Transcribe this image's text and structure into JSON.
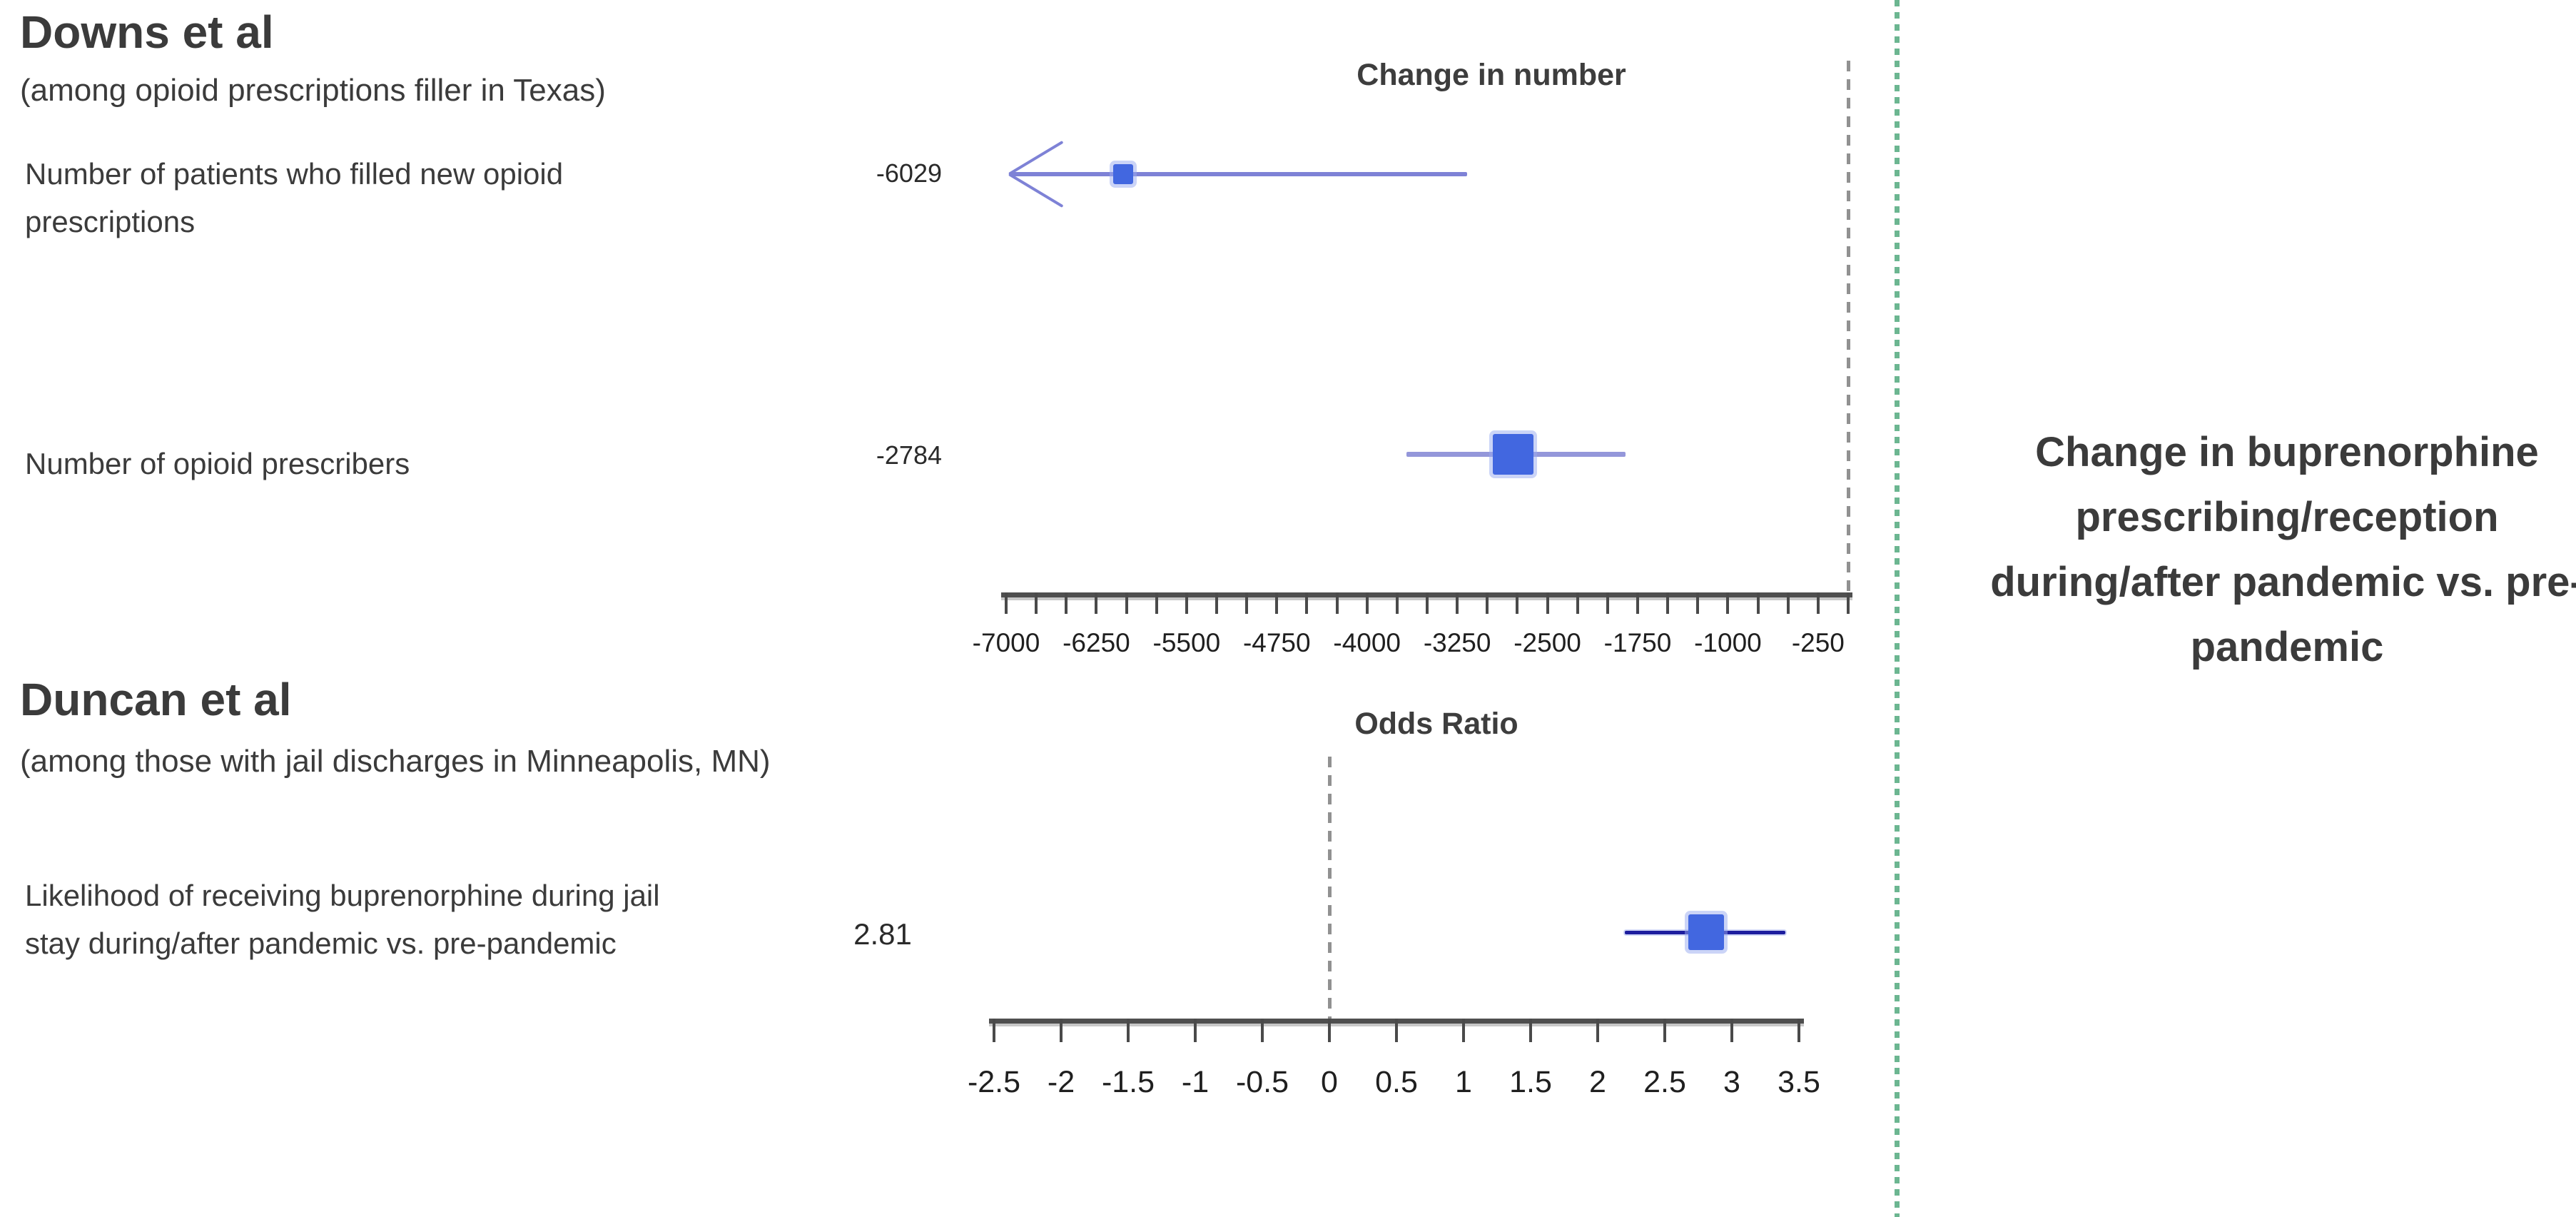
{
  "colors": {
    "text_dark": "#3d3d3d",
    "tick_text": "#1f1f1f",
    "axis_line": "#4f4f4f",
    "reference_dash": "#919191",
    "divider_green": "#6cb691",
    "marker_blue": "#4267e0",
    "marker_glow": "#97a9ef",
    "ci_slate": "#7e82d6",
    "ci_slate_light": "#9497da",
    "ci_navy": "#1d1d9e"
  },
  "annotation": {
    "text": "Change in buprenorphine prescribing/reception during/after pandemic vs. pre-pandemic"
  },
  "chart_data": [
    {
      "type": "forest",
      "section_title": "Downs et al",
      "section_note": "(among opioid prescriptions filler in Texas)",
      "axis_title": "Change in number",
      "axis": {
        "min": -7000,
        "max": 0,
        "minor_tick_step": 250,
        "reference_line_value": 0,
        "tick_labels": [
          {
            "value": -7000,
            "label": "-7000"
          },
          {
            "value": -6250,
            "label": "-6250"
          },
          {
            "value": -5500,
            "label": "-5500"
          },
          {
            "value": -4750,
            "label": "-4750"
          },
          {
            "value": -4000,
            "label": "-4000"
          },
          {
            "value": -3250,
            "label": "-3250"
          },
          {
            "value": -2500,
            "label": "-2500"
          },
          {
            "value": -1750,
            "label": "-1750"
          },
          {
            "value": -1000,
            "label": "-1000"
          },
          {
            "value": -250,
            "label": "-250"
          }
        ]
      },
      "rows": [
        {
          "label": "Number of patients who filled new opioid prescriptions",
          "estimate": -6029,
          "estimate_label": "-6029",
          "ci_low": -7000,
          "ci_low_arrow": true,
          "ci_high": -3170,
          "marker_size": 28,
          "line_color": "#7e82d6"
        },
        {
          "label": "Number of opioid prescribers",
          "estimate": -2784,
          "estimate_label": "-2784",
          "ci_low": -3670,
          "ci_low_arrow": false,
          "ci_high": -1850,
          "marker_size": 57,
          "line_color": "#9497da"
        }
      ]
    },
    {
      "type": "forest",
      "section_title": "Duncan et al",
      "section_note": "(among those with jail discharges in Minneapolis, MN)",
      "axis_title": "Odds Ratio",
      "axis": {
        "min": -2.5,
        "max": 3.5,
        "minor_tick_step": 0.5,
        "reference_line_value": 0,
        "tick_labels": [
          {
            "value": -2.5,
            "label": "-2.5"
          },
          {
            "value": -2,
            "label": "-2"
          },
          {
            "value": -1.5,
            "label": "-1.5"
          },
          {
            "value": -1,
            "label": "-1"
          },
          {
            "value": -0.5,
            "label": "-0.5"
          },
          {
            "value": 0,
            "label": "0"
          },
          {
            "value": 0.5,
            "label": "0.5"
          },
          {
            "value": 1,
            "label": "1"
          },
          {
            "value": 1.5,
            "label": "1.5"
          },
          {
            "value": 2,
            "label": "2"
          },
          {
            "value": 2.5,
            "label": "2.5"
          },
          {
            "value": 3,
            "label": "3"
          },
          {
            "value": 3.5,
            "label": "3.5"
          }
        ]
      },
      "rows": [
        {
          "label": "Likelihood of receiving buprenorphine during jail stay during/after pandemic vs. pre-pandemic",
          "estimate": 2.81,
          "estimate_label": "2.81",
          "ci_low": 2.2,
          "ci_low_arrow": false,
          "ci_high": 3.4,
          "marker_size": 50,
          "line_color": "#1d1d9e"
        }
      ]
    }
  ]
}
